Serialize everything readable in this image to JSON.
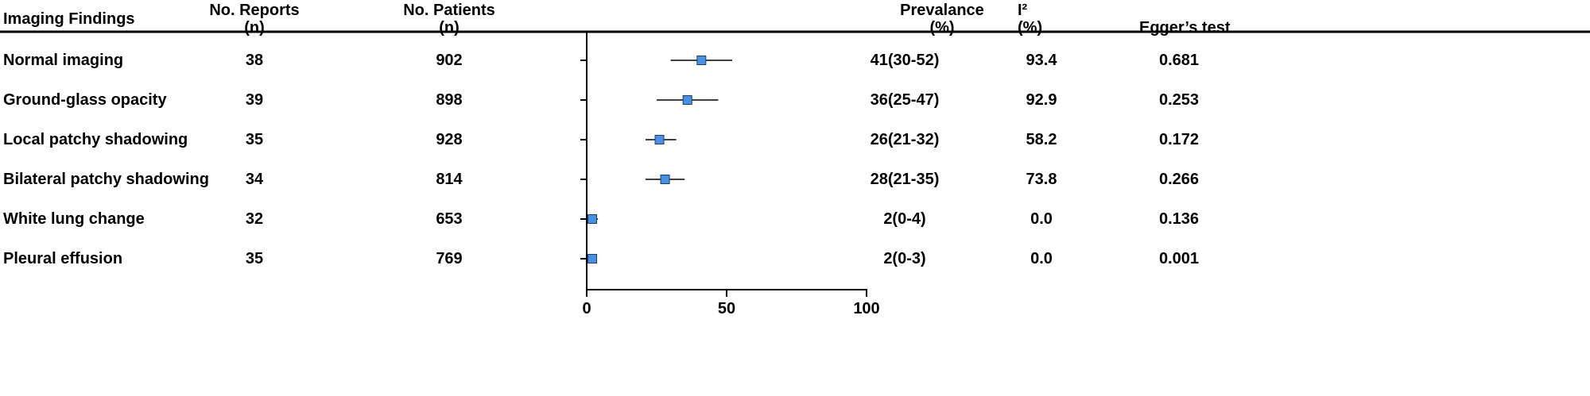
{
  "headers": {
    "finding": "Imaging Findings",
    "reports": [
      "No. Reports",
      "(n)"
    ],
    "patients": [
      "No. Patients",
      "(n)"
    ],
    "prevalence": [
      "Prevalance",
      "(%)"
    ],
    "i2": [
      "I²",
      "(%)"
    ],
    "egger": "Egger’s test"
  },
  "chart_data": {
    "type": "forest",
    "xlim": [
      0,
      100
    ],
    "xticks": [
      "0",
      "50",
      "100"
    ],
    "marker_color": "#4a90e2",
    "rows": [
      {
        "finding": "Normal imaging",
        "reports": "38",
        "patients": "902",
        "prevalence": "41(30-52)",
        "i2": "93.4",
        "egger": "0.681",
        "est": 41,
        "lo": 30,
        "hi": 52
      },
      {
        "finding": "Ground-glass opacity",
        "reports": "39",
        "patients": "898",
        "prevalence": "36(25-47)",
        "i2": "92.9",
        "egger": "0.253",
        "est": 36,
        "lo": 25,
        "hi": 47
      },
      {
        "finding": "Local patchy shadowing",
        "reports": "35",
        "patients": "928",
        "prevalence": "26(21-32)",
        "i2": "58.2",
        "egger": "0.172",
        "est": 26,
        "lo": 21,
        "hi": 32
      },
      {
        "finding": "Bilateral patchy shadowing",
        "reports": "34",
        "patients": "814",
        "prevalence": "28(21-35)",
        "i2": "73.8",
        "egger": "0.266",
        "est": 28,
        "lo": 21,
        "hi": 35
      },
      {
        "finding": "White lung change",
        "reports": "32",
        "patients": "653",
        "prevalence": "2(0-4)",
        "i2": "0.0",
        "egger": "0.136",
        "est": 2,
        "lo": 0,
        "hi": 4
      },
      {
        "finding": "Pleural effusion",
        "reports": "35",
        "patients": "769",
        "prevalence": "2(0-3)",
        "i2": "0.0",
        "egger": "0.001",
        "est": 2,
        "lo": 0,
        "hi": 3
      }
    ]
  }
}
